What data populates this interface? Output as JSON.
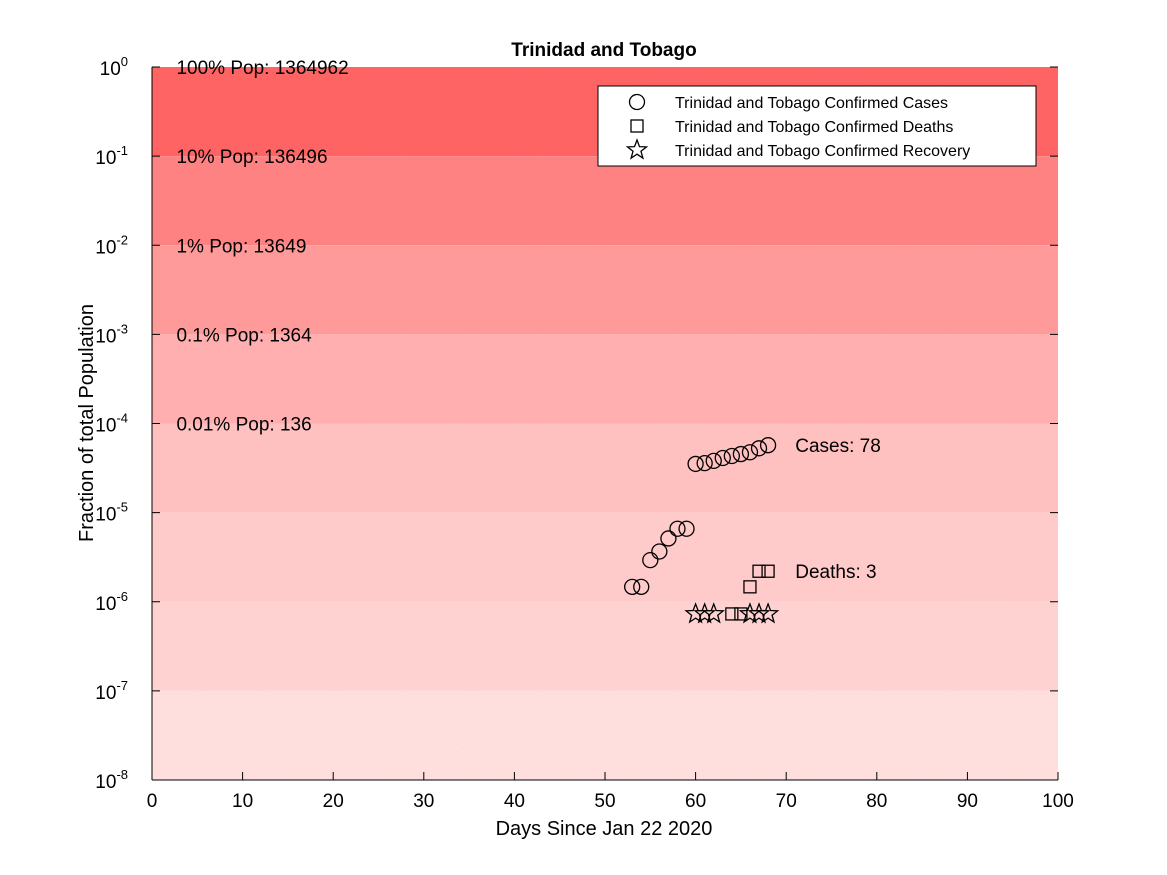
{
  "chart_data": {
    "type": "scatter",
    "title": "Trinidad and Tobago",
    "xlabel": "Days Since Jan 22 2020",
    "ylabel": "Fraction of total Population",
    "xlim": [
      0,
      100
    ],
    "ylim": [
      1e-08,
      1
    ],
    "yscale": "log",
    "xticks": [
      0,
      10,
      20,
      30,
      40,
      50,
      60,
      70,
      80,
      90,
      100
    ],
    "yticks": [
      {
        "value": 1e-08,
        "base": "10",
        "exp": "-8"
      },
      {
        "value": 1e-07,
        "base": "10",
        "exp": "-7"
      },
      {
        "value": 1e-06,
        "base": "10",
        "exp": "-6"
      },
      {
        "value": 1e-05,
        "base": "10",
        "exp": "-5"
      },
      {
        "value": 0.0001,
        "base": "10",
        "exp": "-4"
      },
      {
        "value": 0.001,
        "base": "10",
        "exp": "-3"
      },
      {
        "value": 0.01,
        "base": "10",
        "exp": "-2"
      },
      {
        "value": 0.1,
        "base": "10",
        "exp": "-1"
      },
      {
        "value": 1,
        "base": "10",
        "exp": "0"
      }
    ],
    "bands": [
      {
        "from": 0.1,
        "to": 1,
        "color": "#ff6464"
      },
      {
        "from": 0.01,
        "to": 0.1,
        "color": "#ff8282"
      },
      {
        "from": 0.001,
        "to": 0.01,
        "color": "#ff9a9a"
      },
      {
        "from": 0.0001,
        "to": 0.001,
        "color": "#ffafaf"
      },
      {
        "from": 1e-05,
        "to": 0.0001,
        "color": "#ffc0c0"
      },
      {
        "from": 1e-06,
        "to": 1e-05,
        "color": "#ffcaca"
      },
      {
        "from": 1e-07,
        "to": 1e-06,
        "color": "#ffd2d2"
      },
      {
        "from": 1e-08,
        "to": 1e-07,
        "color": "#ffdede"
      }
    ],
    "band_labels": [
      {
        "text": "100% Pop: 1364962",
        "x": 2.7,
        "y": 1
      },
      {
        "text": "10% Pop: 136496",
        "x": 2.7,
        "y": 0.1
      },
      {
        "text": "1% Pop: 13649",
        "x": 2.7,
        "y": 0.01
      },
      {
        "text": "0.1% Pop: 1364",
        "x": 2.7,
        "y": 0.001
      },
      {
        "text": "0.01% Pop: 136",
        "x": 2.7,
        "y": 0.0001
      }
    ],
    "legend_position": "top-right",
    "series": [
      {
        "name": "Trinidad and Tobago Confirmed Cases",
        "marker": "circle",
        "points": [
          [
            53,
            1.47e-06
          ],
          [
            54,
            1.47e-06
          ],
          [
            55,
            2.93e-06
          ],
          [
            56,
            3.66e-06
          ],
          [
            57,
            5.13e-06
          ],
          [
            58,
            6.59e-06
          ],
          [
            59,
            6.59e-06
          ],
          [
            60,
            3.52e-05
          ],
          [
            61,
            3.59e-05
          ],
          [
            62,
            3.81e-05
          ],
          [
            63,
            4.1e-05
          ],
          [
            64,
            4.32e-05
          ],
          [
            65,
            4.54e-05
          ],
          [
            66,
            4.76e-05
          ],
          [
            67,
            5.27e-05
          ],
          [
            68,
            5.71e-05
          ]
        ]
      },
      {
        "name": "Trinidad and Tobago Confirmed Deaths",
        "marker": "square",
        "points": [
          [
            64,
            7.3e-07
          ],
          [
            65,
            7.3e-07
          ],
          [
            66,
            1.47e-06
          ],
          [
            67,
            2.2e-06
          ],
          [
            68,
            2.2e-06
          ]
        ]
      },
      {
        "name": "Trinidad and Tobago Confirmed Recovery",
        "marker": "star",
        "points": [
          [
            60,
            7.3e-07
          ],
          [
            61,
            7.3e-07
          ],
          [
            62,
            7.3e-07
          ],
          [
            66,
            7.3e-07
          ],
          [
            67,
            7.3e-07
          ],
          [
            68,
            7.3e-07
          ]
        ]
      }
    ],
    "annotations": [
      {
        "text": "Cases: 78",
        "x": 71,
        "y": 5.71e-05
      },
      {
        "text": "Deaths: 3",
        "x": 71,
        "y": 2.2e-06
      }
    ]
  }
}
